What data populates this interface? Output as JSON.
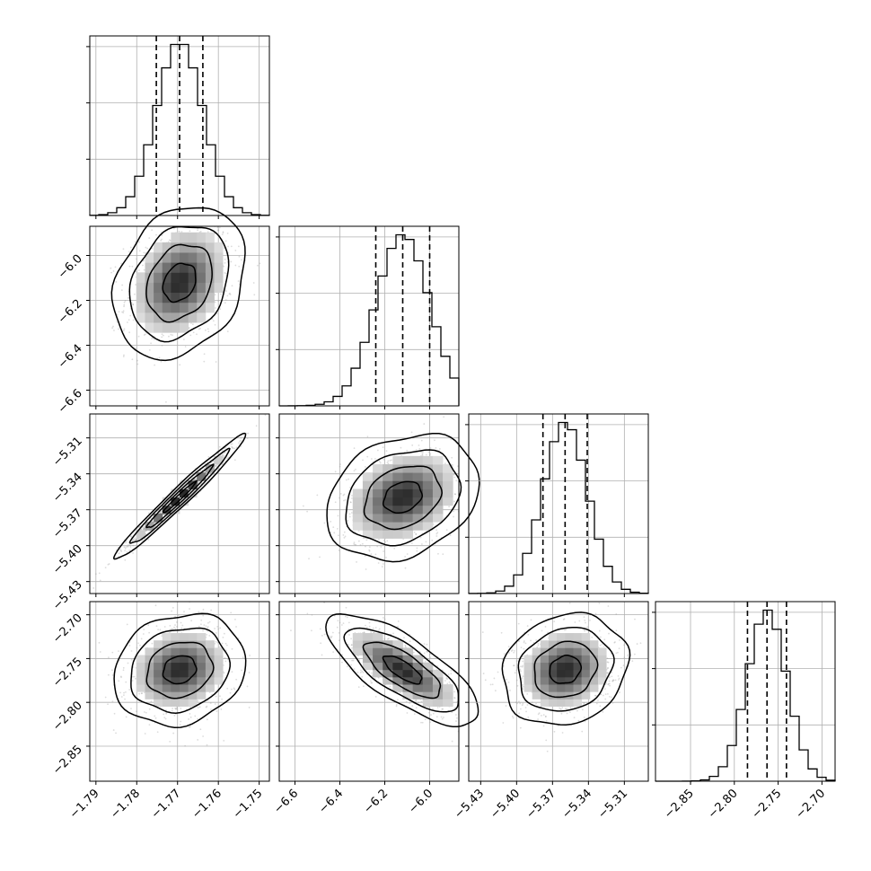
{
  "chart_data": {
    "type": "corner",
    "n_params": 4,
    "params": [
      {
        "mean": -1.7695,
        "sigma": 0.0057,
        "quantiles": [
          -1.7752,
          -1.7695,
          -1.7638
        ],
        "range": [
          -1.7915,
          -1.7475
        ],
        "ticks": [
          -1.79,
          -1.78,
          -1.77,
          -1.76,
          -1.75
        ],
        "tick_labels": [
          "−1.79",
          "−1.78",
          "−1.77",
          "−1.76",
          "−1.75"
        ]
      },
      {
        "mean": -6.12,
        "sigma": 0.12,
        "quantiles": [
          -6.24,
          -6.12,
          -6.0
        ],
        "range": [
          -6.67,
          -5.87
        ],
        "ticks": [
          -6.6,
          -6.4,
          -6.2,
          -6.0
        ],
        "tick_labels": [
          "−6.6",
          "−6.4",
          "−6.2",
          "−6.0"
        ]
      },
      {
        "mean": -5.3595,
        "sigma": 0.0185,
        "quantiles": [
          -5.378,
          -5.3595,
          -5.341
        ],
        "range": [
          -5.44,
          -5.29
        ],
        "ticks": [
          -5.43,
          -5.4,
          -5.37,
          -5.34,
          -5.31
        ],
        "tick_labels": [
          "−5.43",
          "−5.40",
          "−5.37",
          "−5.34",
          "−5.31"
        ]
      },
      {
        "mean": -2.7627,
        "sigma": 0.0225,
        "quantiles": [
          -2.785,
          -2.7627,
          -2.7405
        ],
        "range": [
          -2.89,
          -2.685
        ],
        "ticks": [
          -2.85,
          -2.8,
          -2.75,
          -2.7
        ],
        "tick_labels": [
          "−2.85",
          "−2.80",
          "−2.75",
          "−2.70"
        ]
      }
    ],
    "correlations": {
      "1,0": 0.25,
      "2,0": 0.98,
      "2,1": 0.25,
      "3,0": 0.15,
      "3,1": -0.75,
      "3,2": 0.15
    },
    "contour_levels_sigma": [
      0.5,
      1.0,
      1.5,
      2.0
    ],
    "grid": true,
    "histogram_bins": 20
  }
}
